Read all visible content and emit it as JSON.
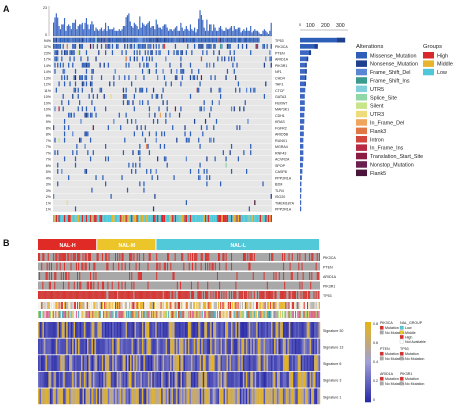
{
  "panel_a": {
    "label": "A",
    "top_axis": {
      "max": "23",
      "zero": "0"
    },
    "right_axis_ticks": [
      "0",
      "100",
      "200",
      "300"
    ],
    "genes": [
      {
        "pct": "94%",
        "name": "TP53"
      },
      {
        "pct": "37%",
        "name": "PIK3CA"
      },
      {
        "pct": "23%",
        "name": "PTEN"
      },
      {
        "pct": "17%",
        "name": "ARID1A"
      },
      {
        "pct": "14%",
        "name": "PIK3R1"
      },
      {
        "pct": "14%",
        "name": "NF1"
      },
      {
        "pct": "13%",
        "name": "CHD4"
      },
      {
        "pct": "12%",
        "name": "TAF1"
      },
      {
        "pct": "11%",
        "name": "CTCF"
      },
      {
        "pct": "10%",
        "name": "GATA3"
      },
      {
        "pct": "10%",
        "name": "FBXW7"
      },
      {
        "pct": "10%",
        "name": "MAP3K1"
      },
      {
        "pct": "9%",
        "name": "CDH1"
      },
      {
        "pct": "9%",
        "name": "KRAS"
      },
      {
        "pct": "8%",
        "name": "FGFR2"
      },
      {
        "pct": "8%",
        "name": "ARID5B"
      },
      {
        "pct": "7%",
        "name": "RUNX1"
      },
      {
        "pct": "7%",
        "name": "MGRA4"
      },
      {
        "pct": "7%",
        "name": "RNF43"
      },
      {
        "pct": "7%",
        "name": "ACVR2A"
      },
      {
        "pct": "6%",
        "name": "SPOP"
      },
      {
        "pct": "5%",
        "name": "CASP8"
      },
      {
        "pct": "4%",
        "name": "PPP2R1A"
      },
      {
        "pct": "3%",
        "name": "B2M"
      },
      {
        "pct": "3%",
        "name": "TLR4"
      },
      {
        "pct": "2%",
        "name": "ISG20"
      },
      {
        "pct": "1%",
        "name": "TMEM187A"
      },
      {
        "pct": "1%",
        "name": "PPP2R1A"
      }
    ],
    "alterations_title": "Alterations",
    "alterations": [
      {
        "name": "Missense_Mutation",
        "color": "#2e5fb8"
      },
      {
        "name": "Nonsense_Mutation",
        "color": "#1f3f8f"
      },
      {
        "name": "Frame_Shift_Del",
        "color": "#5a86d6"
      },
      {
        "name": "Frame_Shift_Ins",
        "color": "#3a9b8e"
      },
      {
        "name": "UTR5",
        "color": "#83d0dd"
      },
      {
        "name": "Splice_Site",
        "color": "#8fd7a6"
      },
      {
        "name": "Silent",
        "color": "#c9e58c"
      },
      {
        "name": "UTR3",
        "color": "#eedb7a"
      },
      {
        "name": "In_Frame_Del",
        "color": "#f0a55c"
      },
      {
        "name": "Flank3",
        "color": "#e07744"
      },
      {
        "name": "Intron",
        "color": "#d2463b"
      },
      {
        "name": "In_Frame_Ins",
        "color": "#b82a44"
      },
      {
        "name": "Translation_Start_Site",
        "color": "#8c1b44"
      },
      {
        "name": "Nonstop_Mutation",
        "color": "#6b1f4e"
      },
      {
        "name": "Flank5",
        "color": "#4a1538"
      }
    ],
    "groups_title": "Groups",
    "groups": [
      {
        "name": "High",
        "color": "#d7282c"
      },
      {
        "name": "Middle",
        "color": "#e8b42c"
      },
      {
        "name": "Low",
        "color": "#4fc7d8"
      }
    ]
  },
  "panel_b": {
    "label": "B",
    "group_headers": [
      {
        "name": "NAL-H",
        "color": "#e02a25"
      },
      {
        "name": "NAL-M",
        "color": "#ecc52a"
      },
      {
        "name": "NAL-L",
        "color": "#52c9d9"
      }
    ],
    "gene_tracks": [
      "PIK3CA",
      "PTEN",
      "ARID1A",
      "PIK3R1",
      "TP53"
    ],
    "signatures": [
      "Signature 30",
      "Signature 13",
      "Signature 6",
      "Signature 3",
      "Signature 1"
    ],
    "colorbar_ticks": [
      "0.8",
      "0.6",
      "0.4",
      "0.2",
      "0"
    ],
    "mini_legend_titles": [
      "PIK3CA",
      "NAL_GROUP",
      "PTEN",
      "TP53",
      "ARID1A",
      "PIK3R1"
    ],
    "mini_legend_items": [
      "Mutation",
      "No Mutation",
      "Fixed",
      "Low",
      "Middle",
      "High",
      "Not Available"
    ],
    "colors": {
      "high": "#e6b317",
      "low": "#2b2ca8",
      "mut": "#d9302d",
      "nomut": "#a8a8a8"
    }
  }
}
